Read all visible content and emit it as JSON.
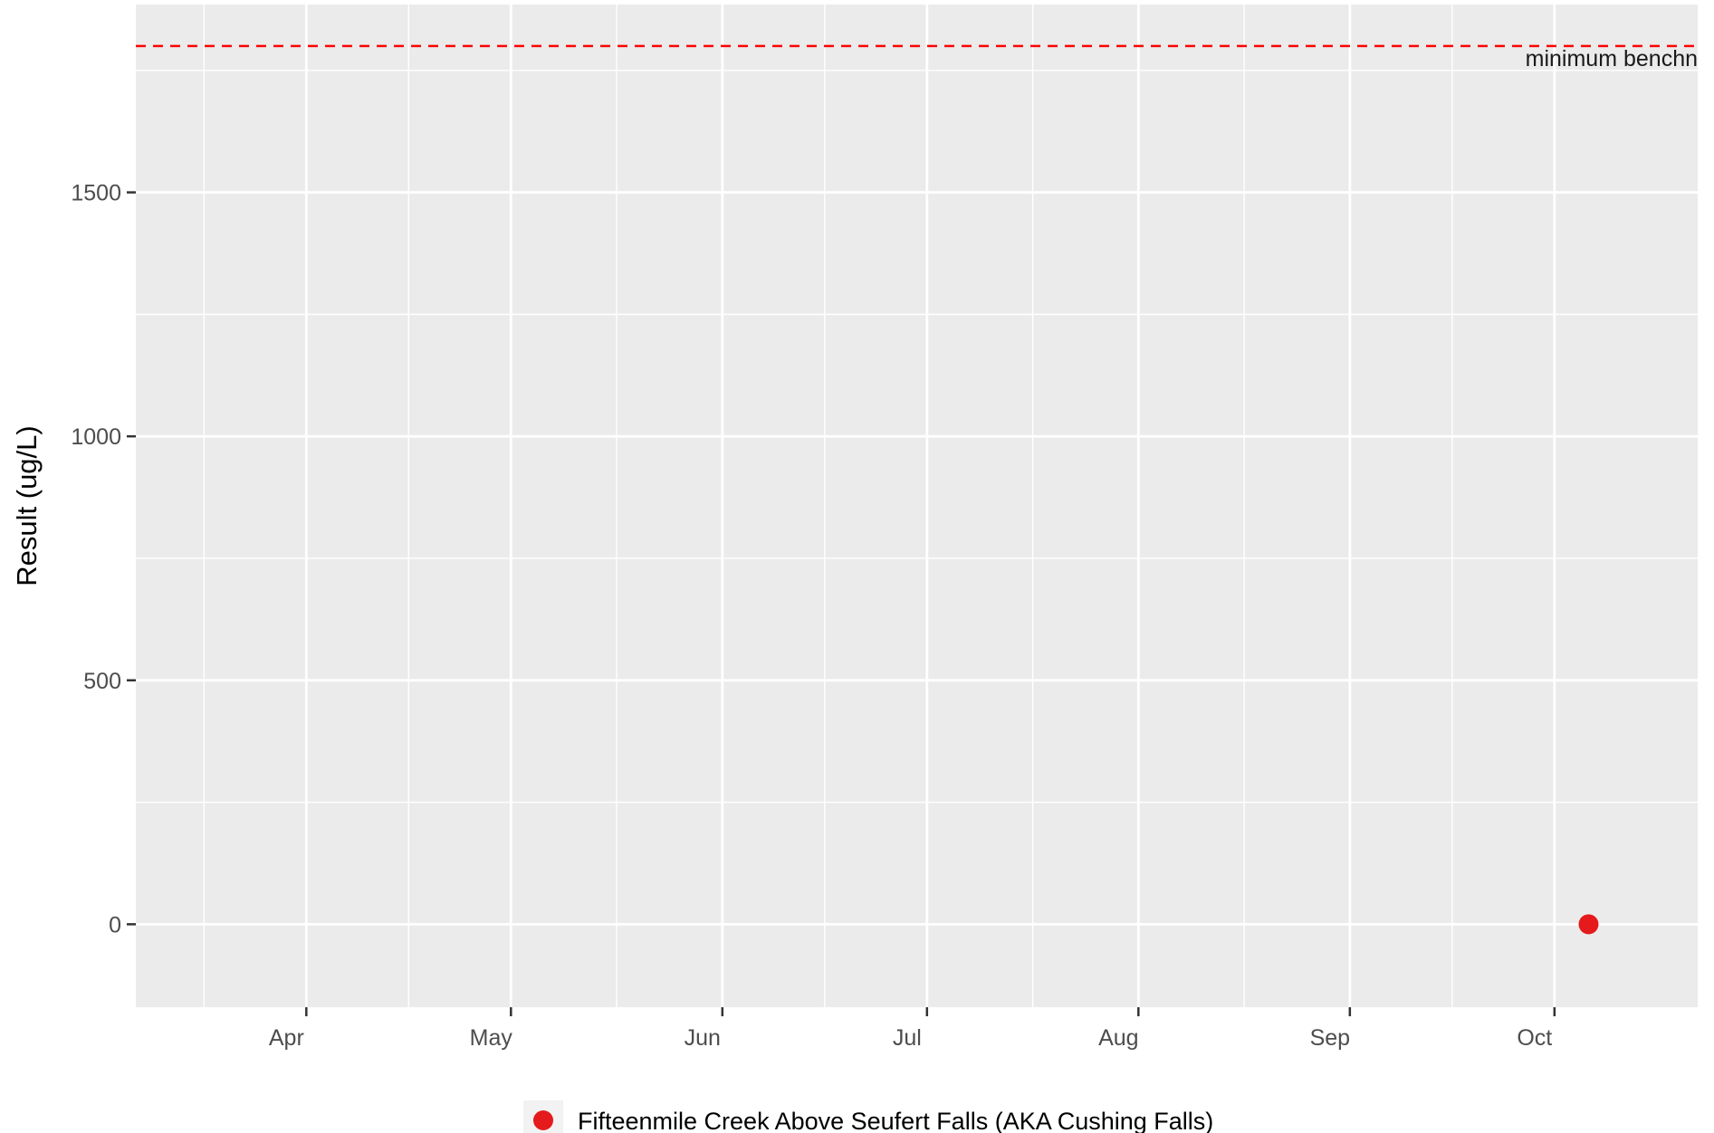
{
  "chart_data": {
    "type": "scatter",
    "title": "",
    "xlabel": "",
    "ylabel": "Result (ug/L)",
    "x_axis_type": "date",
    "xlim": [
      "2023-03-07",
      "2023-10-22"
    ],
    "ylim": [
      -170,
      1885
    ],
    "x_ticks": [
      {
        "date": "2023-04-01",
        "label": "Apr"
      },
      {
        "date": "2023-05-01",
        "label": "May"
      },
      {
        "date": "2023-06-01",
        "label": "Jun"
      },
      {
        "date": "2023-07-01",
        "label": "Jul"
      },
      {
        "date": "2023-08-01",
        "label": "Aug"
      },
      {
        "date": "2023-09-01",
        "label": "Sep"
      },
      {
        "date": "2023-10-01",
        "label": "Oct"
      }
    ],
    "y_ticks": [
      {
        "value": 0,
        "label": "0"
      },
      {
        "value": 500,
        "label": "500"
      },
      {
        "value": 1000,
        "label": "1000"
      },
      {
        "value": 1500,
        "label": "1500"
      }
    ],
    "y_minor_ticks": [
      250,
      750,
      1250,
      1750
    ],
    "grid": true,
    "panel_background": "#ebebeb",
    "grid_color": "#ffffff",
    "series": [
      {
        "name": "Fifteenmile Creek Above Seufert Falls (AKA Cushing Falls)",
        "color": "#e41a1c",
        "points": [
          {
            "x": "2023-10-06",
            "y": 0
          }
        ]
      }
    ],
    "reference_lines": [
      {
        "y": 1800,
        "label": "minimum benchn",
        "color": "#ff0000",
        "style": "dashed"
      }
    ],
    "legend": {
      "position": "bottom"
    }
  }
}
